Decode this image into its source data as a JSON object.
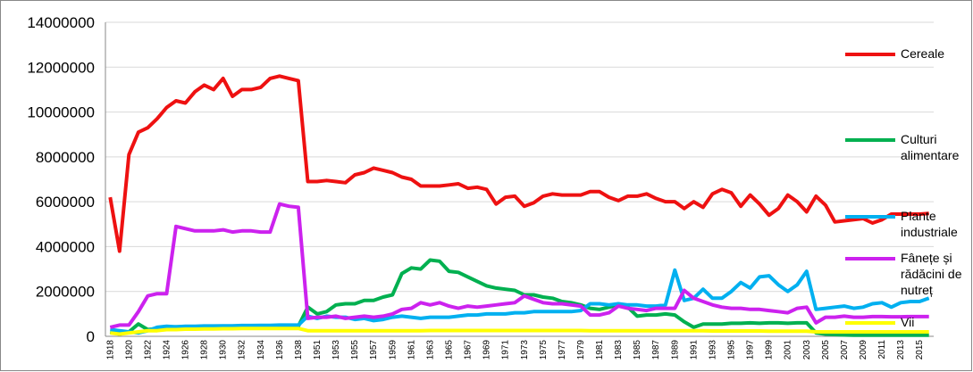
{
  "chart_data": {
    "type": "line",
    "categories": [
      "1918",
      null,
      "1920",
      null,
      "1922",
      null,
      "1924",
      null,
      "1926",
      null,
      "1928",
      null,
      "1930",
      null,
      "1932",
      null,
      "1934",
      null,
      "1936",
      null,
      "1938",
      null,
      "1951",
      null,
      "1953",
      null,
      "1955",
      null,
      "1957",
      null,
      "1959",
      null,
      "1961",
      null,
      "1963",
      null,
      "1965",
      null,
      "1967",
      null,
      "1969",
      null,
      "1971",
      null,
      "1973",
      null,
      "1975",
      null,
      "1977",
      null,
      "1979",
      null,
      "1981",
      null,
      "1983",
      null,
      "1985",
      null,
      "1987",
      null,
      "1989",
      null,
      "1991",
      null,
      "1993",
      null,
      "1995",
      null,
      "1997",
      null,
      "1999",
      null,
      "2001",
      null,
      "2003",
      null,
      "2005",
      null,
      "2007",
      null,
      "2009",
      null,
      "2011",
      null,
      "2013",
      null,
      "2015",
      null
    ],
    "series": [
      {
        "name": "Cereale",
        "color": "#ee1111",
        "values": [
          6200000,
          3800000,
          8100000,
          9100000,
          9300000,
          9700000,
          10200000,
          10500000,
          10400000,
          10900000,
          11200000,
          11000000,
          11500000,
          10700000,
          11000000,
          11000000,
          11100000,
          11500000,
          11600000,
          11500000,
          11400000,
          6900000,
          6900000,
          6950000,
          6900000,
          6850000,
          7200000,
          7300000,
          7500000,
          7400000,
          7300000,
          7100000,
          7000000,
          6700000,
          6700000,
          6700000,
          6750000,
          6800000,
          6600000,
          6650000,
          6550000,
          5900000,
          6200000,
          6250000,
          5800000,
          5950000,
          6250000,
          6350000,
          6300000,
          6300000,
          6300000,
          6450000,
          6450000,
          6200000,
          6050000,
          6250000,
          6250000,
          6350000,
          6150000,
          6000000,
          6000000,
          5700000,
          6000000,
          5750000,
          6350000,
          6550000,
          6400000,
          5800000,
          6300000,
          5900000,
          5400000,
          5700000,
          6300000,
          6000000,
          5550000,
          6250000,
          5850000,
          5100000,
          5150000,
          5200000,
          5250000,
          5050000,
          5200000,
          5450000,
          5450000,
          5450000,
          5450000,
          5480000
        ]
      },
      {
        "name": "Culturi alimentare",
        "color": "#00b050",
        "values": [
          200000,
          100000,
          200000,
          550000,
          300000,
          350000,
          400000,
          420000,
          420000,
          430000,
          430000,
          440000,
          440000,
          440000,
          450000,
          450000,
          450000,
          450000,
          460000,
          460000,
          450000,
          1300000,
          1000000,
          1100000,
          1400000,
          1450000,
          1450000,
          1600000,
          1600000,
          1750000,
          1850000,
          2800000,
          3050000,
          3000000,
          3400000,
          3350000,
          2900000,
          2850000,
          2650000,
          2450000,
          2250000,
          2150000,
          2100000,
          2050000,
          1850000,
          1850000,
          1750000,
          1700000,
          1550000,
          1500000,
          1400000,
          1250000,
          1200000,
          1300000,
          1400000,
          1300000,
          900000,
          950000,
          950000,
          1000000,
          950000,
          650000,
          400000,
          550000,
          550000,
          550000,
          580000,
          580000,
          600000,
          580000,
          600000,
          600000,
          580000,
          600000,
          600000,
          150000,
          100000,
          80000,
          60000,
          50000,
          50000,
          50000,
          50000,
          50000,
          50000,
          50000,
          50000,
          50000
        ]
      },
      {
        "name": "Plante industriale",
        "color": "#00b0f0",
        "values": [
          300000,
          250000,
          200000,
          150000,
          250000,
          400000,
          450000,
          420000,
          450000,
          450000,
          460000,
          460000,
          470000,
          470000,
          480000,
          480000,
          490000,
          490000,
          500000,
          500000,
          500000,
          900000,
          800000,
          900000,
          850000,
          850000,
          750000,
          800000,
          700000,
          750000,
          850000,
          900000,
          850000,
          800000,
          850000,
          850000,
          850000,
          900000,
          950000,
          950000,
          1000000,
          1000000,
          1000000,
          1050000,
          1050000,
          1100000,
          1100000,
          1100000,
          1100000,
          1100000,
          1150000,
          1450000,
          1450000,
          1400000,
          1450000,
          1400000,
          1400000,
          1350000,
          1350000,
          1400000,
          2950000,
          1600000,
          1700000,
          2100000,
          1700000,
          1700000,
          2000000,
          2400000,
          2150000,
          2650000,
          2700000,
          2300000,
          2000000,
          2300000,
          2900000,
          1200000,
          1250000,
          1300000,
          1350000,
          1250000,
          1300000,
          1450000,
          1500000,
          1300000,
          1500000,
          1550000,
          1550000,
          1700000
        ]
      },
      {
        "name": "Fânețe și rădăcini de nutreț",
        "color": "#cc22ee",
        "values": [
          400000,
          500000,
          500000,
          1100000,
          1800000,
          1900000,
          1900000,
          4900000,
          4800000,
          4700000,
          4700000,
          4700000,
          4750000,
          4650000,
          4700000,
          4700000,
          4650000,
          4650000,
          5900000,
          5800000,
          5750000,
          800000,
          850000,
          850000,
          900000,
          800000,
          850000,
          900000,
          850000,
          900000,
          1000000,
          1200000,
          1250000,
          1500000,
          1400000,
          1500000,
          1350000,
          1250000,
          1350000,
          1300000,
          1350000,
          1400000,
          1450000,
          1500000,
          1800000,
          1650000,
          1500000,
          1450000,
          1450000,
          1400000,
          1350000,
          950000,
          950000,
          1050000,
          1350000,
          1250000,
          1200000,
          1150000,
          1250000,
          1250000,
          1250000,
          2050000,
          1700000,
          1550000,
          1400000,
          1300000,
          1250000,
          1250000,
          1200000,
          1200000,
          1150000,
          1100000,
          1050000,
          1250000,
          1300000,
          600000,
          850000,
          850000,
          900000,
          850000,
          850000,
          880000,
          880000,
          870000,
          870000,
          880000,
          880000,
          880000
        ]
      },
      {
        "name": "Vii",
        "color": "#ffff00",
        "values": [
          150000,
          100000,
          150000,
          200000,
          250000,
          250000,
          300000,
          300000,
          320000,
          320000,
          330000,
          330000,
          340000,
          340000,
          350000,
          350000,
          350000,
          350000,
          350000,
          350000,
          350000,
          250000,
          250000,
          250000,
          250000,
          250000,
          250000,
          250000,
          250000,
          250000,
          250000,
          250000,
          250000,
          250000,
          260000,
          260000,
          260000,
          260000,
          260000,
          260000,
          260000,
          260000,
          260000,
          260000,
          260000,
          260000,
          260000,
          260000,
          260000,
          260000,
          260000,
          250000,
          250000,
          250000,
          250000,
          250000,
          250000,
          250000,
          250000,
          250000,
          250000,
          250000,
          250000,
          250000,
          240000,
          240000,
          240000,
          240000,
          240000,
          240000,
          230000,
          230000,
          230000,
          230000,
          230000,
          200000,
          200000,
          200000,
          200000,
          200000,
          200000,
          200000,
          200000,
          200000,
          200000,
          200000,
          200000,
          200000
        ]
      }
    ],
    "ylim": [
      0,
      14000000
    ],
    "yticks": [
      0,
      2000000,
      4000000,
      6000000,
      8000000,
      10000000,
      12000000,
      14000000
    ],
    "grid": true,
    "legend": "right"
  }
}
